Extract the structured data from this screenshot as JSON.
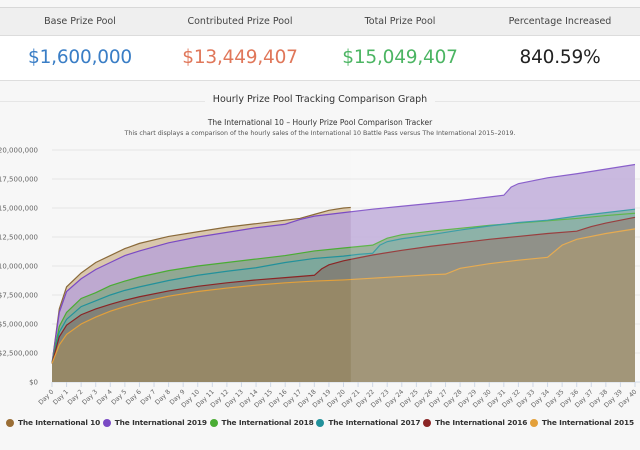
{
  "stats": {
    "columns": [
      {
        "label": "Base Prize Pool",
        "value": "$1,600,000",
        "color": "#3a7ec6"
      },
      {
        "label": "Contributed Prize Pool",
        "value": "$13,449,407",
        "color": "#e0775a"
      },
      {
        "label": "Total Prize Pool",
        "value": "$15,049,407",
        "color": "#4cb563"
      },
      {
        "label": "Percentage Increased",
        "value": "840.59%",
        "color": "#222222"
      }
    ]
  },
  "section_title": "Hourly Prize Pool Tracking Comparison Graph",
  "chart_data": {
    "type": "area",
    "title": "The International 10 – Hourly Prize Pool Comparison Tracker",
    "subtitle": "This chart displays a comparison of the hourly sales of the International 10 Battle Pass versus The International 2015–2019.",
    "xlabel": "",
    "ylabel": "",
    "ylim": [
      0,
      20000000
    ],
    "yticks": [
      0,
      2500000,
      5000000,
      7500000,
      10000000,
      12500000,
      15000000,
      17500000,
      20000000
    ],
    "ytick_labels": [
      "$0",
      "$2,500,000",
      "$5,000,000",
      "$7,500,000",
      "$10,000,000",
      "$12,500,000",
      "$15,000,000",
      "$17,500,000",
      "$20,000,000"
    ],
    "xlim": [
      0,
      40
    ],
    "x_tick_labels": [
      "Day 0",
      "Day 1",
      "Day 2",
      "Day 3",
      "Day 4",
      "Day 5",
      "Day 6",
      "Day 7",
      "Day 8",
      "Day 9",
      "Day 10",
      "Day 11",
      "Day 12",
      "Day 13",
      "Day 14",
      "Day 15",
      "Day 16",
      "Day 17",
      "Day 18",
      "Day 19",
      "Day 20",
      "Day 21",
      "Day 22",
      "Day 23",
      "Day 24",
      "Day 25",
      "Day 26",
      "Day 27",
      "Day 28",
      "Day 29",
      "Day 30",
      "Day 31",
      "Day 32",
      "Day 33",
      "Day 34",
      "Day 35",
      "Day 36",
      "Day 37",
      "Day 38",
      "Day 39",
      "Day 40"
    ],
    "grid": true,
    "legend_position": "bottom",
    "series": [
      {
        "name": "The International 2015",
        "color": "#e3a03a",
        "fill": "#9a8964",
        "x": [
          0,
          0.5,
          1,
          2,
          3,
          4,
          5,
          6,
          8,
          10,
          12,
          14,
          16,
          18,
          20,
          22,
          24,
          26,
          27,
          28,
          30,
          32,
          34,
          35,
          36,
          38,
          40
        ],
        "y": [
          1.6,
          3.2,
          4.1,
          5.0,
          5.6,
          6.1,
          6.5,
          6.85,
          7.4,
          7.8,
          8.1,
          8.35,
          8.55,
          8.7,
          8.8,
          8.95,
          9.1,
          9.25,
          9.3,
          9.8,
          10.2,
          10.5,
          10.75,
          11.8,
          12.3,
          12.8,
          13.2
        ]
      },
      {
        "name": "The International 2016",
        "color": "#8b2525",
        "fill": "#817b73",
        "x": [
          0,
          0.5,
          1,
          2,
          3,
          4,
          5,
          6,
          8,
          10,
          12,
          14,
          16,
          18,
          18.5,
          19,
          20,
          21,
          22,
          24,
          26,
          28,
          30,
          32,
          34,
          36,
          37,
          38,
          40
        ],
        "y": [
          1.6,
          3.9,
          4.9,
          5.8,
          6.3,
          6.7,
          7.05,
          7.35,
          7.85,
          8.25,
          8.55,
          8.8,
          9.0,
          9.2,
          9.75,
          10.1,
          10.45,
          10.7,
          10.95,
          11.35,
          11.7,
          12.0,
          12.3,
          12.55,
          12.8,
          13.0,
          13.4,
          13.7,
          14.2
        ]
      },
      {
        "name": "The International 2017",
        "color": "#22919b",
        "fill": "#7aa89d",
        "x": [
          0,
          0.5,
          1,
          2,
          3,
          4,
          5,
          6,
          8,
          10,
          12,
          14,
          16,
          18,
          20,
          21,
          22,
          22.5,
          23,
          24,
          26,
          28,
          30,
          32,
          34,
          36,
          38,
          40
        ],
        "y": [
          1.6,
          4.3,
          5.4,
          6.5,
          7.0,
          7.5,
          7.9,
          8.2,
          8.75,
          9.2,
          9.55,
          9.85,
          10.3,
          10.65,
          10.85,
          11.0,
          11.1,
          11.8,
          12.1,
          12.35,
          12.7,
          13.1,
          13.45,
          13.75,
          13.95,
          14.3,
          14.6,
          14.9
        ]
      },
      {
        "name": "The International 2018",
        "color": "#4aac34",
        "fill": "#8aa888",
        "x": [
          0,
          0.5,
          1,
          2,
          3,
          4,
          5,
          6,
          8,
          10,
          12,
          14,
          16,
          18,
          20,
          22,
          23,
          24,
          26,
          28,
          30,
          32,
          34,
          36,
          38,
          40
        ],
        "y": [
          1.6,
          4.8,
          6.0,
          7.2,
          7.7,
          8.3,
          8.7,
          9.05,
          9.6,
          10.0,
          10.3,
          10.6,
          10.9,
          11.3,
          11.55,
          11.8,
          12.4,
          12.7,
          13.0,
          13.25,
          13.5,
          13.7,
          13.9,
          14.1,
          14.35,
          14.55
        ]
      },
      {
        "name": "The International 2019",
        "color": "#7a4ac4",
        "fill": "#b9a3d6",
        "x": [
          0,
          0.5,
          1,
          2,
          3,
          4,
          5,
          6,
          8,
          10,
          12,
          14,
          16,
          17,
          18,
          20,
          22,
          24,
          26,
          28,
          30,
          31,
          31.5,
          32,
          34,
          36,
          38,
          40
        ],
        "y": [
          1.6,
          6.0,
          7.8,
          8.9,
          9.7,
          10.3,
          10.9,
          11.3,
          12.0,
          12.5,
          12.9,
          13.3,
          13.6,
          14.0,
          14.3,
          14.6,
          14.9,
          15.15,
          15.4,
          15.65,
          15.95,
          16.1,
          16.8,
          17.1,
          17.6,
          17.95,
          18.35,
          18.75
        ]
      },
      {
        "name": "The International 10",
        "color": "#8a6a3a",
        "fill": "#d9c7ac",
        "x": [
          0,
          0.5,
          1,
          2,
          3,
          4,
          5,
          6,
          8,
          10,
          12,
          14,
          16,
          17,
          18,
          19,
          20,
          20.5
        ],
        "y": [
          1.6,
          6.3,
          8.2,
          9.4,
          10.3,
          10.9,
          11.5,
          11.95,
          12.55,
          12.95,
          13.35,
          13.65,
          13.95,
          14.1,
          14.45,
          14.8,
          15.0,
          15.05
        ]
      }
    ],
    "value_units": "millions USD"
  },
  "legend": {
    "items": [
      {
        "label": "The International 10",
        "color": "#9a6e35"
      },
      {
        "label": "The International 2019",
        "color": "#7a4ac4"
      },
      {
        "label": "The International 2018",
        "color": "#4aac34"
      },
      {
        "label": "The International 2017",
        "color": "#22919b"
      },
      {
        "label": "The International 2016",
        "color": "#8b2525"
      },
      {
        "label": "The International 2015",
        "color": "#e3a03a"
      }
    ]
  }
}
